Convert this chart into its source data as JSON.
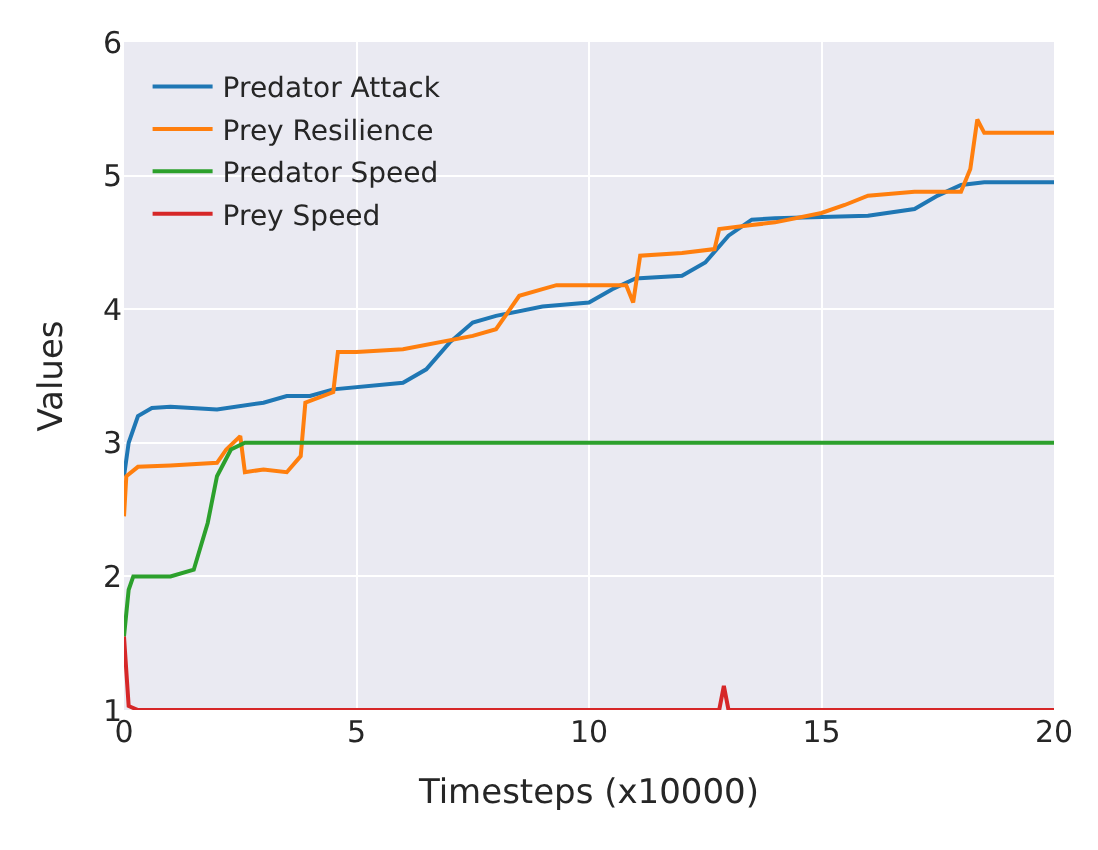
{
  "chart_data": {
    "type": "line",
    "xlabel": "Timesteps (x10000)",
    "ylabel": "Values",
    "xlim": [
      0,
      20
    ],
    "ylim": [
      1,
      6
    ],
    "xticks": [
      0,
      5,
      10,
      15,
      20
    ],
    "yticks": [
      1,
      2,
      3,
      4,
      5,
      6
    ],
    "grid": true,
    "legend": "top left",
    "series": [
      {
        "name": "Predator Attack",
        "color": "#1f77b4",
        "x": [
          0,
          0.1,
          0.3,
          0.6,
          1,
          2,
          3,
          3.5,
          4,
          4.5,
          6,
          6.5,
          7,
          7.5,
          8,
          9,
          10,
          10.5,
          11,
          12,
          12.5,
          13,
          13.5,
          14,
          15,
          16,
          17,
          17.5,
          18,
          18.5,
          20
        ],
        "values": [
          2.75,
          3.0,
          3.2,
          3.26,
          3.27,
          3.25,
          3.3,
          3.35,
          3.35,
          3.4,
          3.45,
          3.55,
          3.75,
          3.9,
          3.95,
          4.02,
          4.05,
          4.15,
          4.23,
          4.25,
          4.35,
          4.55,
          4.67,
          4.68,
          4.69,
          4.7,
          4.75,
          4.85,
          4.93,
          4.95,
          4.95
        ]
      },
      {
        "name": "Prey Resilience",
        "color": "#ff7f0e",
        "x": [
          0,
          0.05,
          0.3,
          1,
          2,
          2.2,
          2.5,
          2.6,
          3,
          3.5,
          3.8,
          3.9,
          4.5,
          4.6,
          5,
          6,
          7.5,
          8,
          8.5,
          9,
          9.3,
          10,
          10.8,
          10.95,
          11.1,
          12,
          12.7,
          12.8,
          13.5,
          14,
          15,
          15.5,
          16,
          17,
          18,
          18.2,
          18.35,
          18.5,
          20
        ],
        "values": [
          2.45,
          2.75,
          2.82,
          2.83,
          2.85,
          2.95,
          3.05,
          2.78,
          2.8,
          2.78,
          2.9,
          3.3,
          3.38,
          3.68,
          3.68,
          3.7,
          3.8,
          3.85,
          4.1,
          4.15,
          4.18,
          4.18,
          4.18,
          4.05,
          4.4,
          4.42,
          4.45,
          4.6,
          4.63,
          4.65,
          4.72,
          4.78,
          4.85,
          4.88,
          4.88,
          5.05,
          5.42,
          5.32,
          5.32
        ]
      },
      {
        "name": "Predator Speed",
        "color": "#2ca02c",
        "x": [
          0,
          0.1,
          0.2,
          1,
          1.5,
          1.8,
          2,
          2.3,
          2.6,
          20
        ],
        "values": [
          1.55,
          1.9,
          2.0,
          2.0,
          2.05,
          2.4,
          2.75,
          2.95,
          3.0,
          3.0
        ]
      },
      {
        "name": "Prey Speed",
        "color": "#d62728",
        "x": [
          0,
          0.1,
          0.3,
          12.8,
          12.9,
          13.0,
          20
        ],
        "values": [
          1.55,
          1.03,
          1.0,
          1.0,
          1.18,
          1.0,
          1.0
        ]
      }
    ]
  }
}
